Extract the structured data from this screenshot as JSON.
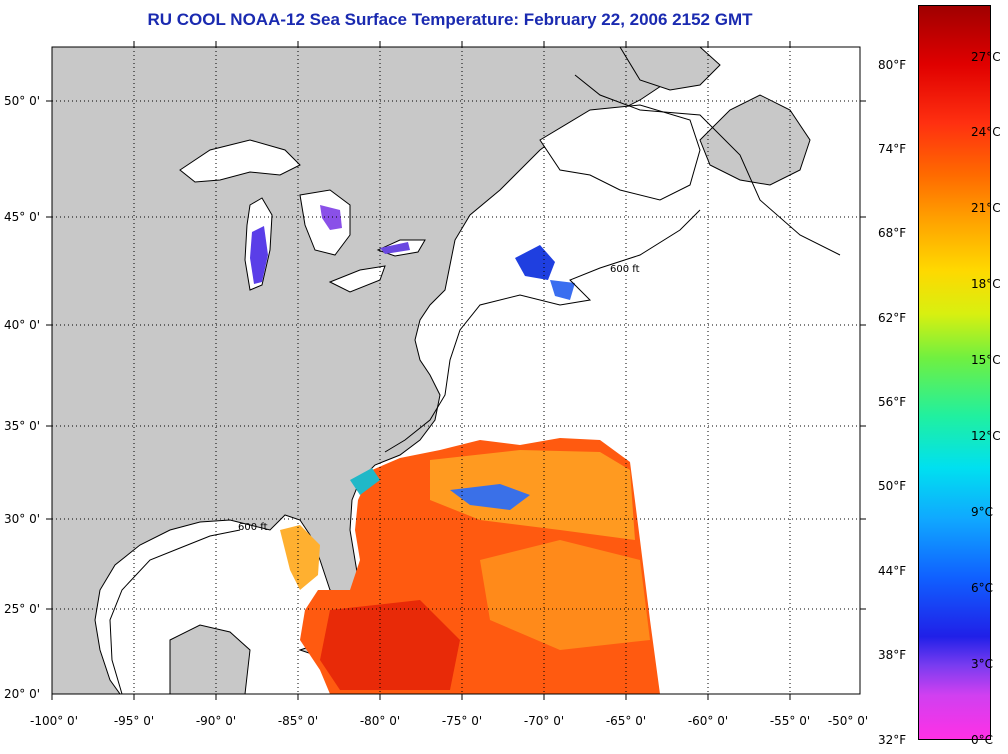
{
  "title": "RU COOL  NOAA-12  Sea Surface Temperature:  February 22, 2006 2152 GMT",
  "lat_labels": [
    "50° 0'",
    "45° 0'",
    "40° 0'",
    "35° 0'",
    "30° 0'",
    "25° 0'",
    "20° 0'"
  ],
  "lon_labels": [
    "-100° 0'",
    "-95° 0'",
    "-90° 0'",
    "-85° 0'",
    "-80° 0'",
    "-75° 0'",
    "-70° 0'",
    "-65° 0'",
    "-60° 0'",
    "-55° 0'",
    "-50° 0'"
  ],
  "colorbar": {
    "fahrenheit": [
      "80°F",
      "74°F",
      "68°F",
      "62°F",
      "56°F",
      "50°F",
      "44°F",
      "38°F",
      "32°F"
    ],
    "celsius": [
      "27°C",
      "24°C",
      "21°C",
      "18°C",
      "15°C",
      "12°C",
      "9°C",
      "6°C",
      "3°C",
      "0°C"
    ]
  },
  "contour_label": "600 ft",
  "colors": {
    "title": "#1a2ab0",
    "land": "#c8c8c8",
    "ocean": "#ffffff",
    "warm_sst": "#ff5a10",
    "cold_sst": "#2040e0"
  }
}
